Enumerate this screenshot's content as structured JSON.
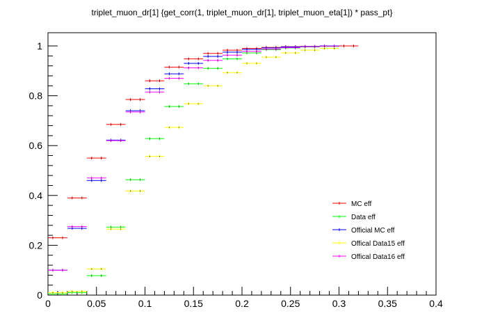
{
  "chart_data": {
    "type": "scatter",
    "title": "triplet_muon_dr[1]  {get_corr(1, triplet_muon_dr[1], triplet_muon_eta[1]) * pass_pt}",
    "xlabel": "",
    "ylabel": "",
    "xlim": [
      0,
      0.4
    ],
    "ylim": [
      0,
      1.02
    ],
    "xticks": [
      0,
      0.05,
      0.1,
      0.15,
      0.2,
      0.25,
      0.3,
      0.35,
      0.4
    ],
    "xtick_labels": [
      "0",
      "0.05",
      "0.1",
      "0.15",
      "0.2",
      "0.25",
      "0.3",
      "0.35",
      "0.4"
    ],
    "yticks": [
      0,
      0.2,
      0.4,
      0.6,
      0.8,
      1
    ],
    "ytick_labels": [
      "0",
      "0.2",
      "0.4",
      "0.6",
      "0.8",
      "1"
    ],
    "legend_position": "lower-right",
    "bin_half_width": 0.005,
    "series": [
      {
        "name": "MC eff",
        "color": "#ff0000",
        "x": [
          0.005,
          0.015,
          0.025,
          0.035,
          0.045,
          0.055,
          0.065,
          0.075,
          0.085,
          0.095,
          0.105,
          0.115,
          0.125,
          0.135,
          0.145,
          0.155,
          0.165,
          0.175,
          0.185,
          0.195,
          0.205,
          0.215,
          0.225,
          0.235,
          0.245,
          0.255,
          0.265,
          0.275,
          0.285,
          0.295,
          0.305,
          0.315
        ],
        "y": [
          0.23,
          0.23,
          0.39,
          0.39,
          0.55,
          0.55,
          0.685,
          0.685,
          0.785,
          0.785,
          0.86,
          0.86,
          0.915,
          0.915,
          0.948,
          0.948,
          0.97,
          0.97,
          0.983,
          0.983,
          0.99,
          0.99,
          0.994,
          0.994,
          0.997,
          0.997,
          0.998,
          0.998,
          0.999,
          0.999,
          1.0,
          1.0
        ]
      },
      {
        "name": "Data eff",
        "color": "#00ff00",
        "x": [
          0.005,
          0.015,
          0.025,
          0.035,
          0.045,
          0.055,
          0.065,
          0.075,
          0.085,
          0.095,
          0.105,
          0.115,
          0.125,
          0.135,
          0.145,
          0.155,
          0.165,
          0.175,
          0.185,
          0.195,
          0.205,
          0.215,
          0.225,
          0.235,
          0.245,
          0.255,
          0.265,
          0.275,
          0.285,
          0.295
        ],
        "y": [
          0.005,
          0.005,
          0.01,
          0.01,
          0.078,
          0.078,
          0.273,
          0.273,
          0.463,
          0.463,
          0.628,
          0.628,
          0.757,
          0.757,
          0.848,
          0.848,
          0.91,
          0.91,
          0.948,
          0.948,
          0.972,
          0.972,
          0.985,
          0.985,
          0.992,
          0.992,
          0.996,
          0.996,
          0.998,
          0.998
        ]
      },
      {
        "name": "Official MC eff",
        "color": "#0000ff",
        "x": [
          0.005,
          0.015,
          0.025,
          0.035,
          0.045,
          0.055,
          0.065,
          0.075,
          0.085,
          0.095,
          0.105,
          0.115,
          0.125,
          0.135,
          0.145,
          0.155,
          0.165,
          0.175,
          0.185,
          0.195,
          0.205,
          0.215,
          0.225,
          0.235,
          0.245,
          0.255,
          0.265,
          0.275,
          0.285,
          0.295
        ],
        "y": [
          0.1,
          0.1,
          0.268,
          0.268,
          0.46,
          0.46,
          0.622,
          0.622,
          0.74,
          0.74,
          0.828,
          0.828,
          0.888,
          0.888,
          0.93,
          0.93,
          0.958,
          0.958,
          0.975,
          0.975,
          0.986,
          0.986,
          0.992,
          0.992,
          0.996,
          0.996,
          0.998,
          0.998,
          1.0,
          1.0
        ]
      },
      {
        "name": "Offical Data15 eff",
        "color": "#ffff00",
        "x": [
          0.005,
          0.015,
          0.025,
          0.035,
          0.045,
          0.055,
          0.065,
          0.075,
          0.085,
          0.095,
          0.105,
          0.115,
          0.125,
          0.135,
          0.145,
          0.155,
          0.165,
          0.175,
          0.185,
          0.195,
          0.205,
          0.215,
          0.225,
          0.235,
          0.245,
          0.255,
          0.265,
          0.275,
          0.285,
          0.295
        ],
        "y": [
          0.01,
          0.01,
          0.015,
          0.015,
          0.105,
          0.105,
          0.265,
          0.265,
          0.418,
          0.418,
          0.557,
          0.557,
          0.673,
          0.673,
          0.768,
          0.768,
          0.84,
          0.84,
          0.893,
          0.893,
          0.93,
          0.93,
          0.955,
          0.955,
          0.972,
          0.972,
          0.983,
          0.983,
          0.99,
          0.99
        ]
      },
      {
        "name": "Offical Data16 eff",
        "color": "#ff00ff",
        "x": [
          0.005,
          0.015,
          0.025,
          0.035,
          0.045,
          0.055,
          0.065,
          0.075,
          0.085,
          0.095,
          0.105,
          0.115,
          0.125,
          0.135,
          0.145,
          0.155,
          0.165,
          0.175,
          0.185,
          0.195,
          0.205,
          0.215,
          0.225,
          0.235,
          0.245,
          0.255,
          0.265,
          0.275,
          0.285,
          0.295
        ],
        "y": [
          0.1,
          0.1,
          0.275,
          0.275,
          0.47,
          0.47,
          0.62,
          0.62,
          0.735,
          0.735,
          0.815,
          0.815,
          0.87,
          0.87,
          0.912,
          0.912,
          0.942,
          0.942,
          0.963,
          0.963,
          0.978,
          0.978,
          0.987,
          0.987,
          0.993,
          0.993,
          0.997,
          0.997,
          0.999,
          0.999
        ]
      }
    ]
  }
}
